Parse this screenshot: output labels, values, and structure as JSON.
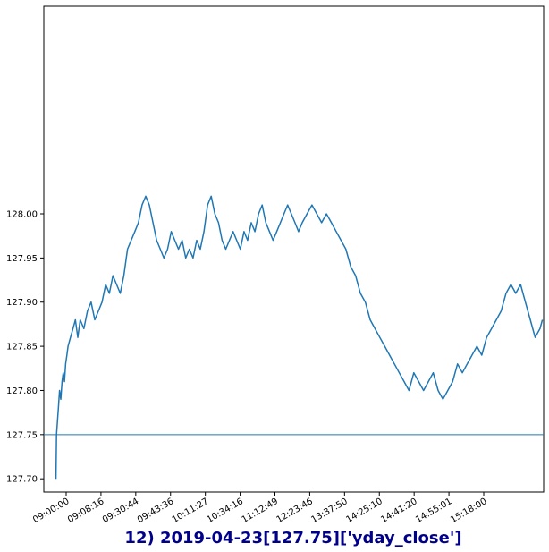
{
  "colors": {
    "series": "#1f77b4",
    "reference_line": "#1f77b4",
    "title": "#00008b",
    "axes": "#000000",
    "background": "#ffffff"
  },
  "chart_data": {
    "type": "line",
    "title": "12) 2019-04-23[127.75]['yday_close']",
    "xlabel": "",
    "ylabel": "",
    "grid": false,
    "legend": "none",
    "x_is_time": true,
    "x_range": [
      "08:50:00",
      "15:42:00"
    ],
    "ylim": [
      127.685,
      128.235
    ],
    "x_tick_labels": [
      "09:00:00",
      "09:08:16",
      "09:30:44",
      "09:43:36",
      "10:11:27",
      "10:34:16",
      "11:12:49",
      "12:23:46",
      "13:37:50",
      "14:25:10",
      "14:41:20",
      "14:55:01",
      "15:18:00"
    ],
    "y_ticks": [
      127.7,
      127.75,
      127.8,
      127.85,
      127.9,
      127.95,
      128.0
    ],
    "y_tick_labels": [
      "127.70",
      "127.75",
      "127.80",
      "127.85",
      "127.90",
      "127.95",
      "128.00"
    ],
    "reference_line": {
      "y": 127.75
    },
    "series": [
      {
        "x": [
          "09:00:00",
          "09:00:30",
          "09:01:00",
          "09:01:30",
          "09:02:00",
          "09:03:00",
          "09:04:00",
          "09:05:00",
          "09:06:00",
          "09:07:00",
          "09:08:00",
          "09:09:00",
          "09:10:00",
          "09:12:00",
          "09:14:00",
          "09:16:00",
          "09:18:00",
          "09:20:00",
          "09:23:00",
          "09:26:00",
          "09:29:00",
          "09:32:00",
          "09:35:00",
          "09:38:00",
          "09:41:00",
          "09:44:00",
          "09:47:00",
          "09:50:00",
          "09:53:00",
          "09:56:00",
          "09:59:00",
          "10:02:00",
          "10:05:00",
          "10:08:00",
          "10:11:00",
          "10:14:00",
          "10:17:00",
          "10:20:00",
          "10:23:00",
          "10:26:00",
          "10:29:00",
          "10:32:00",
          "10:35:00",
          "10:38:00",
          "10:41:00",
          "10:44:00",
          "10:47:00",
          "10:50:00",
          "10:53:00",
          "10:56:00",
          "10:59:00",
          "11:02:00",
          "11:05:00",
          "11:08:00",
          "11:11:00",
          "11:14:00",
          "11:17:00",
          "11:20:00",
          "11:23:00",
          "11:26:00",
          "11:29:00",
          "11:32:00",
          "11:35:00",
          "11:38:00",
          "11:41:00",
          "11:44:00",
          "11:47:00",
          "11:50:00",
          "11:53:00",
          "11:56:00",
          "11:59:00",
          "12:02:00",
          "12:05:00",
          "12:08:00",
          "12:11:00",
          "12:14:00",
          "12:17:00",
          "12:20:00",
          "12:23:00",
          "12:27:00",
          "12:31:00",
          "12:35:00",
          "12:39:00",
          "12:43:00",
          "12:47:00",
          "12:51:00",
          "12:55:00",
          "12:59:00",
          "13:03:00",
          "13:07:00",
          "13:11:00",
          "13:15:00",
          "13:19:00",
          "13:23:00",
          "13:27:00",
          "13:31:00",
          "13:35:00",
          "13:39:00",
          "13:43:00",
          "13:47:00",
          "13:51:00",
          "13:55:00",
          "13:59:00",
          "14:03:00",
          "14:07:00",
          "14:11:00",
          "14:15:00",
          "14:19:00",
          "14:23:00",
          "14:27:00",
          "14:31:00",
          "14:35:00",
          "14:39:00",
          "14:43:00",
          "14:47:00",
          "14:51:00",
          "14:55:00",
          "14:59:00",
          "15:03:00",
          "15:07:00",
          "15:11:00",
          "15:15:00",
          "15:19:00",
          "15:23:00",
          "15:27:00",
          "15:31:00",
          "15:35:00",
          "15:39:00",
          "15:41:00"
        ],
        "values": [
          127.7,
          127.75,
          127.76,
          127.77,
          127.78,
          127.8,
          127.79,
          127.81,
          127.82,
          127.81,
          127.83,
          127.84,
          127.85,
          127.86,
          127.87,
          127.88,
          127.86,
          127.88,
          127.87,
          127.89,
          127.9,
          127.88,
          127.89,
          127.9,
          127.92,
          127.91,
          127.93,
          127.92,
          127.91,
          127.93,
          127.96,
          127.97,
          127.98,
          127.99,
          128.01,
          128.02,
          128.01,
          127.99,
          127.97,
          127.96,
          127.95,
          127.96,
          127.98,
          127.97,
          127.96,
          127.97,
          127.95,
          127.96,
          127.95,
          127.97,
          127.96,
          127.98,
          128.01,
          128.02,
          128.0,
          127.99,
          127.97,
          127.96,
          127.97,
          127.98,
          127.97,
          127.96,
          127.98,
          127.97,
          127.99,
          127.98,
          128.0,
          128.01,
          127.99,
          127.98,
          127.97,
          127.98,
          127.99,
          128.0,
          128.01,
          128.0,
          127.99,
          127.98,
          127.99,
          128.0,
          128.01,
          128.0,
          127.99,
          128.0,
          127.99,
          127.98,
          127.97,
          127.96,
          127.94,
          127.93,
          127.91,
          127.9,
          127.88,
          127.87,
          127.86,
          127.85,
          127.84,
          127.83,
          127.82,
          127.81,
          127.8,
          127.82,
          127.81,
          127.8,
          127.81,
          127.82,
          127.8,
          127.79,
          127.8,
          127.81,
          127.83,
          127.82,
          127.83,
          127.84,
          127.85,
          127.84,
          127.86,
          127.87,
          127.88,
          127.89,
          127.91,
          127.92,
          127.91,
          127.92,
          127.9,
          127.88,
          127.86,
          127.87,
          127.88
        ]
      }
    ]
  }
}
